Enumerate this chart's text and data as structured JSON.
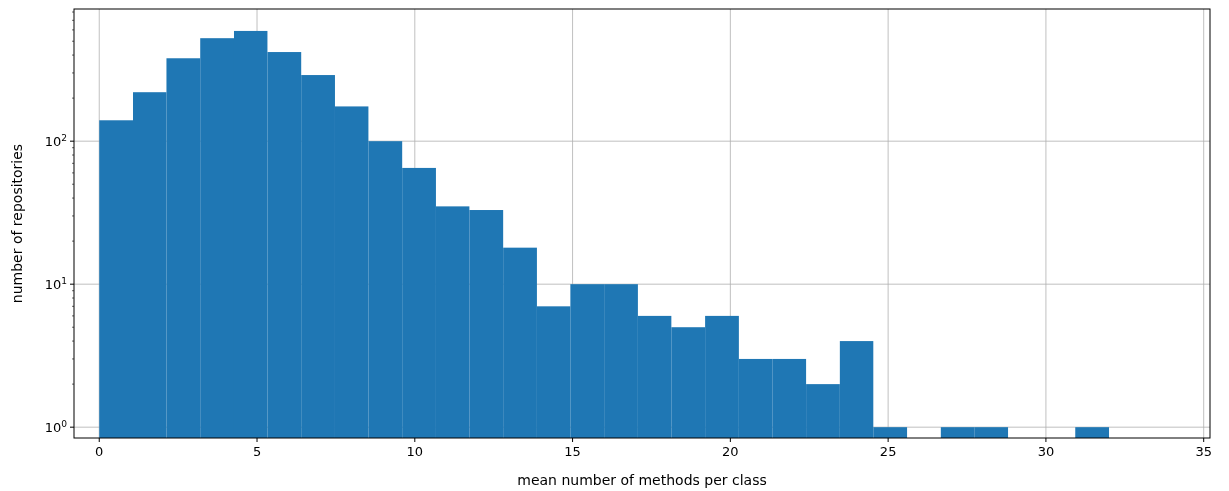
{
  "chart_data": {
    "type": "histogram",
    "xlabel": "mean number of methods per class",
    "ylabel": "number of repositories",
    "bins": [
      0,
      1.07,
      2.13,
      3.2,
      4.27,
      5.33,
      6.4,
      7.47,
      8.53,
      9.6,
      10.67,
      11.73,
      12.8,
      13.87,
      14.93,
      16,
      17.07,
      18.13,
      19.2,
      20.27,
      21.33,
      22.4,
      23.47,
      24.53,
      25.6,
      26.67,
      27.73,
      28.8,
      29.87,
      30.93,
      32
    ],
    "values": [
      140,
      220,
      380,
      525,
      590,
      420,
      290,
      175,
      100,
      65,
      35,
      33,
      18,
      7,
      10,
      10,
      6,
      5,
      6,
      3,
      3,
      2,
      4,
      1,
      null,
      1,
      1,
      null,
      null,
      1
    ],
    "color": "#1f77b4",
    "log": "y",
    "grid": true,
    "xlim": [
      -0.8,
      35.2
    ],
    "xticks": [
      0,
      5,
      10,
      15,
      20,
      25,
      30,
      35
    ],
    "ylim": [
      0.84,
      840
    ],
    "yticks": [
      {
        "value": 1,
        "label": "10$^{0}$"
      },
      {
        "value": 10,
        "label": "10$^{1}$"
      },
      {
        "value": 100,
        "label": "10$^{2}$"
      },
      {
        "value": 2,
        "label": null
      },
      {
        "value": 3,
        "label": null
      },
      {
        "value": 4,
        "label": null
      },
      {
        "value": 5,
        "label": null
      },
      {
        "value": 6,
        "label": null
      },
      {
        "value": 7,
        "label": null
      },
      {
        "value": 8,
        "label": null
      },
      {
        "value": 9,
        "label": null
      },
      {
        "value": 20,
        "label": null
      },
      {
        "value": 30,
        "label": null
      },
      {
        "value": 40,
        "label": null
      },
      {
        "value": 50,
        "label": null
      },
      {
        "value": 60,
        "label": null
      },
      {
        "value": 70,
        "label": null
      },
      {
        "value": 80,
        "label": null
      },
      {
        "value": 90,
        "label": null
      },
      {
        "value": 200,
        "label": null
      },
      {
        "value": 300,
        "label": null
      },
      {
        "value": 400,
        "label": null
      },
      {
        "value": 500,
        "label": null
      },
      {
        "value": 600,
        "label": null
      },
      {
        "value": 700,
        "label": null
      },
      {
        "value": 800,
        "label": null
      }
    ]
  }
}
